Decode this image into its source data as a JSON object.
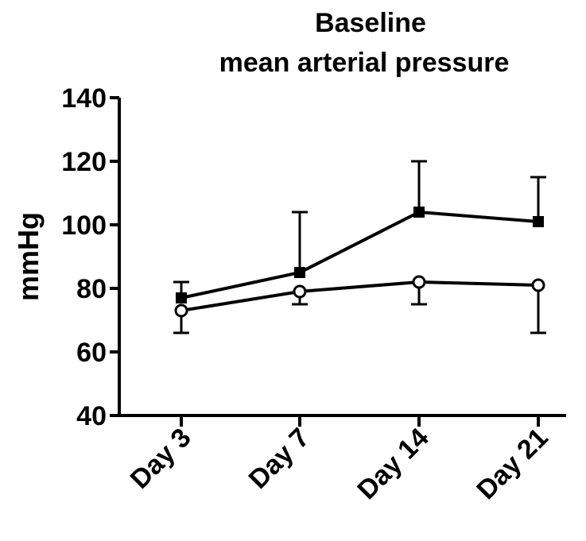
{
  "chart_data": {
    "type": "line",
    "title": [
      "Baseline",
      "mean arterial pressure"
    ],
    "xlabel": "",
    "ylabel": "mmHg",
    "categories": [
      "Day 3",
      "Day 7",
      "Day 14",
      "Day 21"
    ],
    "ylim": [
      40,
      140
    ],
    "yticks": [
      40,
      60,
      80,
      100,
      120,
      140
    ],
    "grid": false,
    "legend": "none",
    "series": [
      {
        "marker": "filled-square",
        "color": "#000000",
        "values": [
          77,
          85,
          104,
          101
        ],
        "error_upper": [
          82,
          104,
          120,
          115
        ]
      },
      {
        "marker": "open-circle",
        "color": "#000000",
        "values": [
          73,
          79,
          82,
          81
        ],
        "error_lower": [
          66,
          75,
          75,
          66
        ]
      }
    ]
  }
}
